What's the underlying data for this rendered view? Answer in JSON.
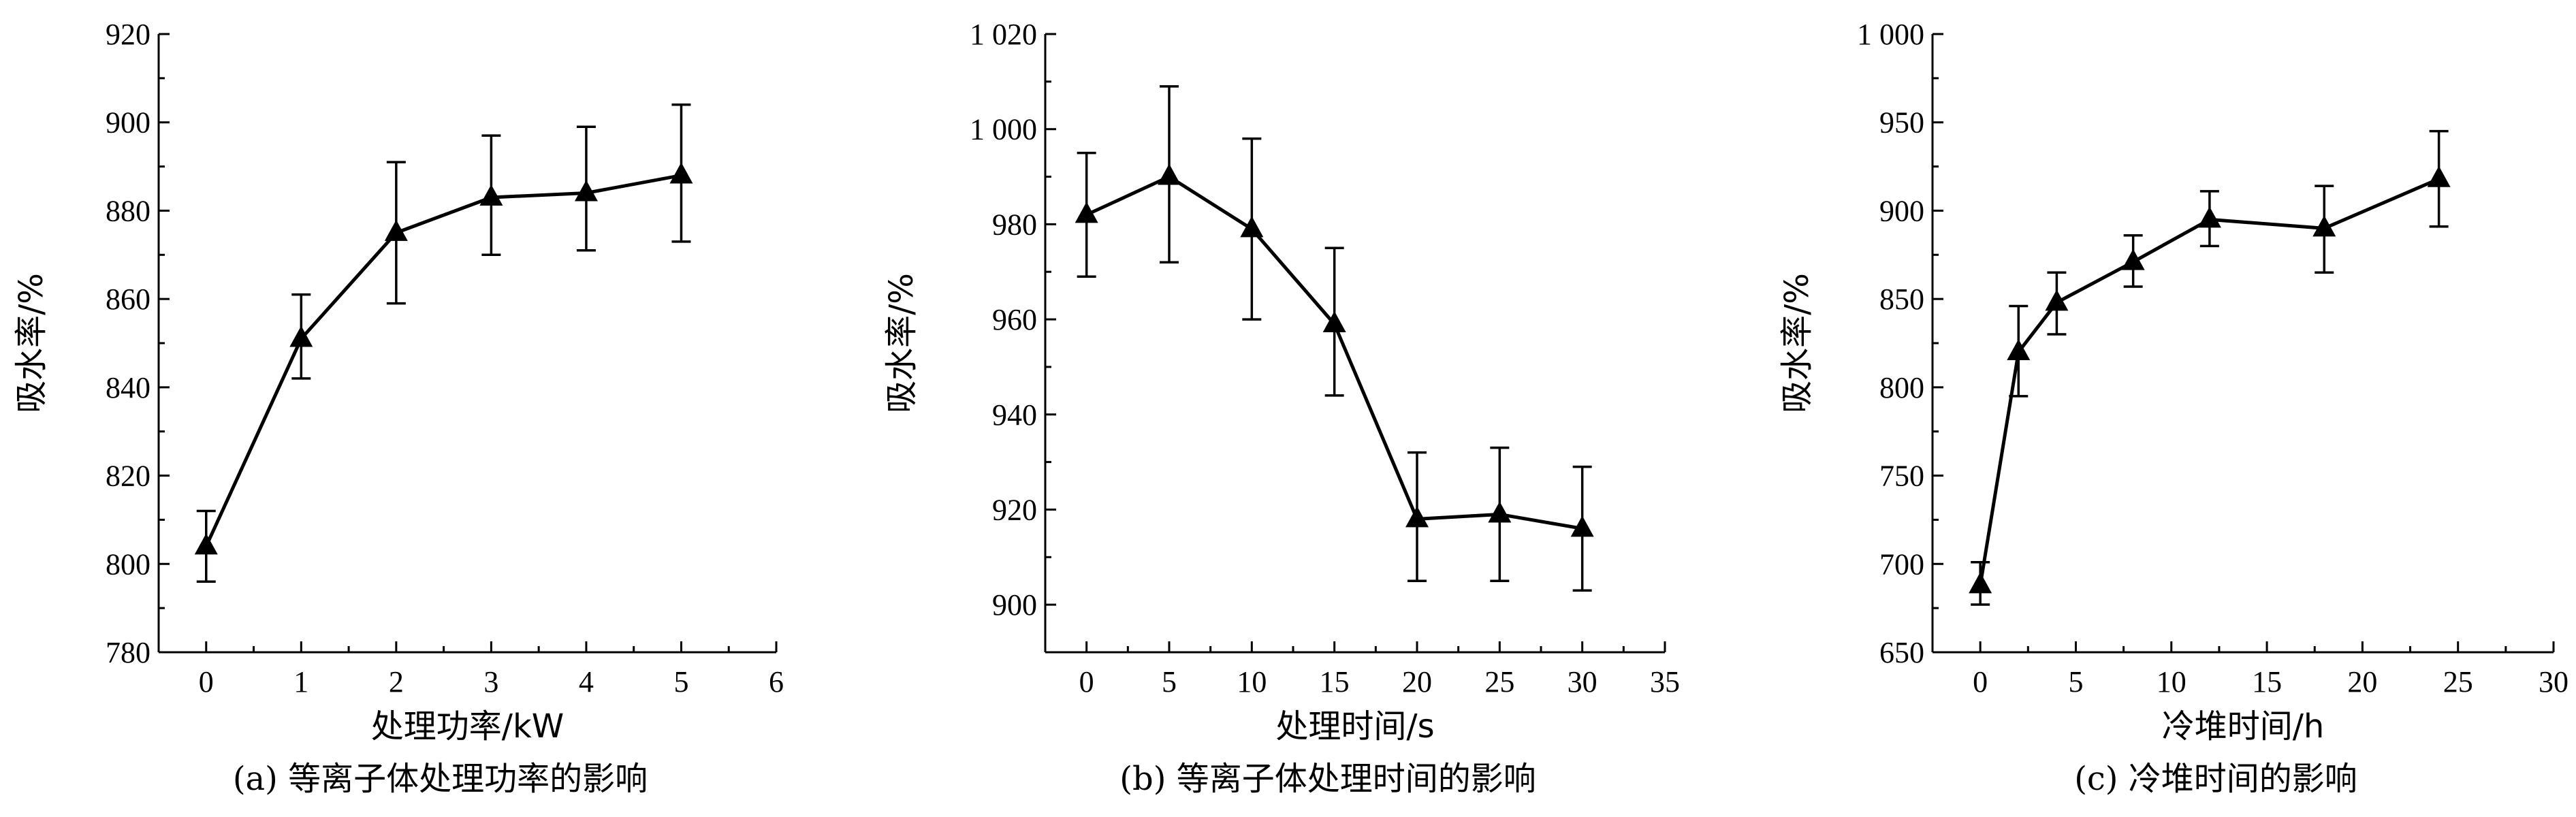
{
  "chart_data": [
    {
      "type": "line",
      "caption": "(a) 等离子体处理功率的影响",
      "xlabel": "处理功率/kW",
      "ylabel": "吸水率/%",
      "xlim": [
        -0.5,
        6
      ],
      "ylim": [
        780,
        920
      ],
      "xticks": [
        0,
        1,
        2,
        3,
        4,
        5,
        6
      ],
      "yticks": [
        780,
        800,
        820,
        840,
        860,
        880,
        900,
        920
      ],
      "ytick_labels": [
        "780",
        "800",
        "820",
        "840",
        "860",
        "880",
        "900",
        "920"
      ],
      "series": [
        {
          "x": [
            0,
            1,
            2,
            3,
            4,
            5
          ],
          "y": [
            804,
            851,
            875,
            883,
            884,
            888
          ],
          "err_low": [
            796,
            842,
            859,
            870,
            871,
            873
          ],
          "err_high": [
            812,
            861,
            891,
            897,
            899,
            904
          ],
          "marker": "triangle-up"
        }
      ]
    },
    {
      "type": "line",
      "caption": "(b) 等离子体处理时间的影响",
      "xlabel": "处理时间/s",
      "ylabel": "吸水率/%",
      "xlim": [
        -2.5,
        35
      ],
      "ylim": [
        890,
        1020
      ],
      "xticks": [
        0,
        5,
        10,
        15,
        20,
        25,
        30,
        35
      ],
      "yticks": [
        900,
        920,
        940,
        960,
        980,
        1000,
        1020
      ],
      "ytick_labels": [
        "900",
        "920",
        "940",
        "960",
        "980",
        "1 000",
        "1 020"
      ],
      "series": [
        {
          "x": [
            0,
            5,
            10,
            15,
            20,
            25,
            30
          ],
          "y": [
            982,
            990,
            979,
            959,
            918,
            919,
            916
          ],
          "err_low": [
            969,
            972,
            960,
            944,
            905,
            905,
            903
          ],
          "err_high": [
            995,
            1009,
            998,
            975,
            932,
            933,
            929
          ],
          "marker": "triangle-up"
        }
      ]
    },
    {
      "type": "line",
      "caption": "(c) 冷堆时间的影响",
      "xlabel": "冷堆时间/h",
      "ylabel": "吸水率/%",
      "xlim": [
        -2.5,
        30
      ],
      "ylim": [
        650,
        1000
      ],
      "xticks": [
        0,
        5,
        10,
        15,
        20,
        25,
        30
      ],
      "yticks": [
        650,
        700,
        750,
        800,
        850,
        900,
        950,
        1000
      ],
      "ytick_labels": [
        "650",
        "700",
        "750",
        "800",
        "850",
        "900",
        "950",
        "1 000"
      ],
      "series": [
        {
          "x": [
            0,
            2,
            4,
            8,
            12,
            18,
            24
          ],
          "y": [
            688,
            820,
            848,
            871,
            895,
            890,
            918
          ],
          "err_low": [
            677,
            795,
            830,
            857,
            880,
            865,
            891
          ],
          "err_high": [
            701,
            846,
            865,
            886,
            911,
            914,
            945
          ],
          "marker": "triangle-up"
        }
      ]
    }
  ]
}
